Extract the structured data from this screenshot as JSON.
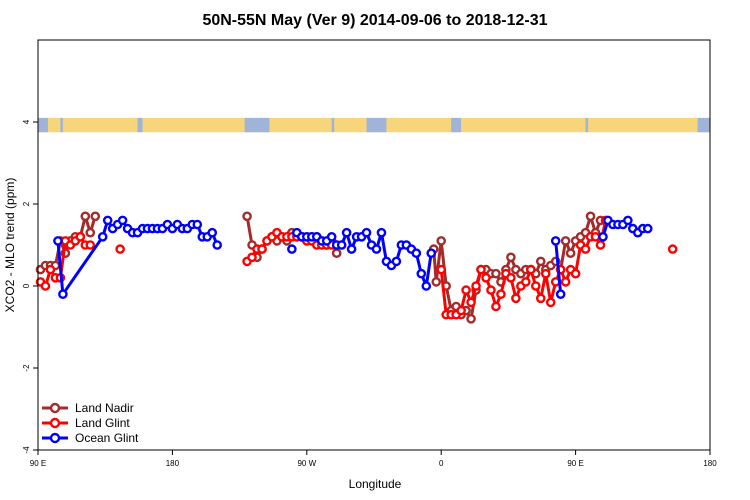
{
  "chart_data": {
    "type": "line",
    "title": "50N-55N May (Ver 9)   2014-09-06 to 2018-12-31",
    "xlabel": "Longitude",
    "ylabel": "XCO2 - MLO trend (ppm)",
    "xlim": [
      -90,
      180
    ],
    "ylim": [
      -4,
      6
    ],
    "x_ticks": [
      {
        "value": -90,
        "label": "90 E"
      },
      {
        "value": -36,
        "label": "180"
      },
      {
        "value": 18,
        "label": "90 W"
      },
      {
        "value": 72,
        "label": "0"
      },
      {
        "value": 126,
        "label": "90 E"
      },
      {
        "value": 180,
        "label": "180"
      }
    ],
    "y_ticks": [
      {
        "value": -4,
        "label": "-4"
      },
      {
        "value": -2,
        "label": "-2"
      },
      {
        "value": 0,
        "label": "0"
      },
      {
        "value": 2,
        "label": "2"
      },
      {
        "value": 4,
        "label": "4"
      }
    ],
    "grid": false,
    "legend_position": "bottom-left",
    "land_ocean_strip": {
      "y_range": [
        3.75,
        4.1
      ],
      "land_color": "#f7d57a",
      "ocean_color": "#9fb4d8",
      "ocean_segments": [
        [
          -90,
          -86
        ],
        [
          -81,
          -80
        ],
        [
          -50,
          -48
        ],
        [
          -7,
          3
        ],
        [
          28,
          29
        ],
        [
          42,
          50
        ],
        [
          76,
          80
        ],
        [
          130,
          131
        ],
        [
          175,
          180
        ]
      ]
    },
    "series": [
      {
        "name": "Land Nadir",
        "color": "#a52a2a",
        "segments": [
          [
            [
              -89,
              0.4
            ],
            [
              -87,
              0.5
            ],
            [
              -85,
              0.5
            ],
            [
              -83,
              0.5
            ],
            [
              -81,
              1.1
            ],
            [
              -79,
              0.8
            ],
            [
              -77,
              1.1
            ],
            [
              -75,
              1.2
            ],
            [
              -73,
              1.2
            ],
            [
              -71,
              1.7
            ],
            [
              -69,
              1.3
            ],
            [
              -67,
              1.7
            ]
          ],
          [
            [
              -6,
              1.7
            ],
            [
              -4,
              1.0
            ],
            [
              -2,
              0.7
            ],
            [
              0,
              0.9
            ],
            [
              2,
              1.1
            ],
            [
              4,
              1.2
            ],
            [
              6,
              1.1
            ],
            [
              8,
              1.2
            ],
            [
              10,
              1.1
            ],
            [
              12,
              1.3
            ],
            [
              14,
              1.2
            ],
            [
              16,
              1.2
            ],
            [
              18,
              1.1
            ],
            [
              20,
              1.2
            ],
            [
              22,
              1.2
            ],
            [
              24,
              1.1
            ],
            [
              26,
              1.0
            ],
            [
              28,
              1.1
            ],
            [
              30,
              0.8
            ]
          ],
          [
            [
              69,
              0.9
            ],
            [
              70,
              0.1
            ],
            [
              72,
              1.1
            ],
            [
              74,
              0.0
            ],
            [
              76,
              -0.6
            ],
            [
              78,
              -0.5
            ],
            [
              80,
              -0.7
            ],
            [
              82,
              -0.6
            ],
            [
              84,
              -0.8
            ],
            [
              86,
              -0.1
            ],
            [
              88,
              0.4
            ],
            [
              90,
              0.4
            ],
            [
              92,
              0.3
            ],
            [
              94,
              0.3
            ],
            [
              96,
              0.1
            ],
            [
              98,
              0.4
            ],
            [
              100,
              0.7
            ],
            [
              102,
              0.4
            ],
            [
              104,
              0.3
            ],
            [
              106,
              0.4
            ],
            [
              108,
              0.4
            ],
            [
              110,
              0.3
            ],
            [
              112,
              0.6
            ],
            [
              114,
              0.4
            ],
            [
              116,
              0.5
            ],
            [
              118,
              0.6
            ],
            [
              120,
              0.4
            ],
            [
              122,
              1.1
            ],
            [
              124,
              0.8
            ],
            [
              126,
              1.1
            ],
            [
              128,
              1.2
            ],
            [
              130,
              1.3
            ],
            [
              132,
              1.7
            ],
            [
              134,
              1.3
            ],
            [
              136,
              1.6
            ]
          ]
        ]
      },
      {
        "name": "Land Glint",
        "color": "#ff0000",
        "segments": [
          [
            [
              -89,
              0.1
            ],
            [
              -87,
              0.0
            ],
            [
              -85,
              0.4
            ],
            [
              -83,
              0.2
            ],
            [
              -81,
              0.2
            ],
            [
              -79,
              1.1
            ],
            [
              -77,
              1.0
            ],
            [
              -75,
              1.1
            ],
            [
              -73,
              1.2
            ],
            [
              -71,
              1.0
            ],
            [
              -69,
              1.0
            ]
          ],
          [
            [
              -57,
              0.9
            ]
          ],
          [
            [
              -6,
              0.6
            ],
            [
              -4,
              0.7
            ],
            [
              -2,
              0.9
            ],
            [
              0,
              0.9
            ],
            [
              2,
              1.1
            ],
            [
              4,
              1.2
            ],
            [
              6,
              1.3
            ],
            [
              8,
              1.2
            ],
            [
              10,
              1.2
            ],
            [
              12,
              1.2
            ],
            [
              14,
              1.2
            ],
            [
              16,
              1.2
            ],
            [
              18,
              1.1
            ],
            [
              20,
              1.1
            ],
            [
              22,
              1.0
            ],
            [
              24,
              1.0
            ],
            [
              26,
              1.0
            ],
            [
              28,
              1.0
            ],
            [
              30,
              1.0
            ],
            [
              32,
              1.0
            ]
          ],
          [
            [
              72,
              0.4
            ],
            [
              74,
              -0.7
            ],
            [
              76,
              -0.7
            ],
            [
              78,
              -0.7
            ],
            [
              80,
              -0.6
            ],
            [
              82,
              -0.1
            ],
            [
              84,
              -0.4
            ],
            [
              86,
              0.0
            ],
            [
              88,
              0.4
            ],
            [
              90,
              0.2
            ],
            [
              92,
              -0.1
            ],
            [
              94,
              -0.5
            ],
            [
              96,
              -0.2
            ],
            [
              98,
              0.3
            ],
            [
              100,
              0.2
            ],
            [
              102,
              -0.3
            ],
            [
              104,
              0.0
            ],
            [
              106,
              0.1
            ],
            [
              108,
              0.4
            ],
            [
              110,
              0.0
            ],
            [
              112,
              -0.3
            ],
            [
              114,
              0.3
            ],
            [
              116,
              -0.4
            ],
            [
              118,
              0.1
            ],
            [
              120,
              0.4
            ],
            [
              122,
              0.1
            ],
            [
              124,
              0.4
            ],
            [
              126,
              0.3
            ],
            [
              128,
              1.0
            ],
            [
              130,
              0.9
            ],
            [
              132,
              1.2
            ],
            [
              134,
              1.2
            ],
            [
              136,
              1.0
            ],
            [
              138,
              1.6
            ]
          ],
          [
            [
              165,
              0.9
            ]
          ]
        ]
      },
      {
        "name": "Ocean Glint",
        "color": "#0000ff",
        "segments": [
          [
            [
              -82,
              1.1
            ],
            [
              -80,
              -0.2
            ],
            [
              -64,
              1.2
            ],
            [
              -62,
              1.6
            ],
            [
              -60,
              1.4
            ],
            [
              -58,
              1.5
            ],
            [
              -56,
              1.6
            ],
            [
              -54,
              1.4
            ],
            [
              -52,
              1.3
            ],
            [
              -50,
              1.3
            ],
            [
              -48,
              1.4
            ],
            [
              -46,
              1.4
            ],
            [
              -44,
              1.4
            ],
            [
              -42,
              1.4
            ],
            [
              -40,
              1.4
            ],
            [
              -38,
              1.5
            ],
            [
              -36,
              1.4
            ],
            [
              -34,
              1.5
            ],
            [
              -32,
              1.4
            ],
            [
              -30,
              1.4
            ],
            [
              -28,
              1.5
            ],
            [
              -26,
              1.5
            ],
            [
              -24,
              1.2
            ],
            [
              -22,
              1.2
            ],
            [
              -20,
              1.3
            ],
            [
              -18,
              1.0
            ]
          ],
          [
            [
              12,
              0.9
            ]
          ],
          [
            [
              14,
              1.3
            ],
            [
              16,
              1.2
            ],
            [
              18,
              1.2
            ],
            [
              20,
              1.2
            ],
            [
              22,
              1.2
            ],
            [
              24,
              1.1
            ],
            [
              26,
              1.1
            ],
            [
              28,
              1.2
            ],
            [
              30,
              1.0
            ],
            [
              32,
              1.0
            ],
            [
              34,
              1.3
            ],
            [
              36,
              0.9
            ],
            [
              38,
              1.2
            ],
            [
              40,
              1.2
            ],
            [
              42,
              1.3
            ],
            [
              44,
              1.0
            ],
            [
              46,
              0.9
            ],
            [
              48,
              1.3
            ],
            [
              50,
              0.6
            ],
            [
              52,
              0.5
            ],
            [
              54,
              0.6
            ],
            [
              56,
              1.0
            ],
            [
              58,
              1.0
            ],
            [
              60,
              0.9
            ],
            [
              62,
              0.8
            ],
            [
              64,
              0.3
            ],
            [
              66,
              0.0
            ],
            [
              68,
              0.8
            ]
          ],
          [
            [
              118,
              1.1
            ],
            [
              120,
              -0.2
            ]
          ],
          [
            [
              137,
              1.2
            ],
            [
              139,
              1.6
            ],
            [
              141,
              1.5
            ],
            [
              143,
              1.5
            ],
            [
              145,
              1.5
            ],
            [
              147,
              1.6
            ],
            [
              149,
              1.4
            ],
            [
              151,
              1.3
            ],
            [
              153,
              1.4
            ],
            [
              155,
              1.4
            ]
          ]
        ]
      }
    ]
  }
}
